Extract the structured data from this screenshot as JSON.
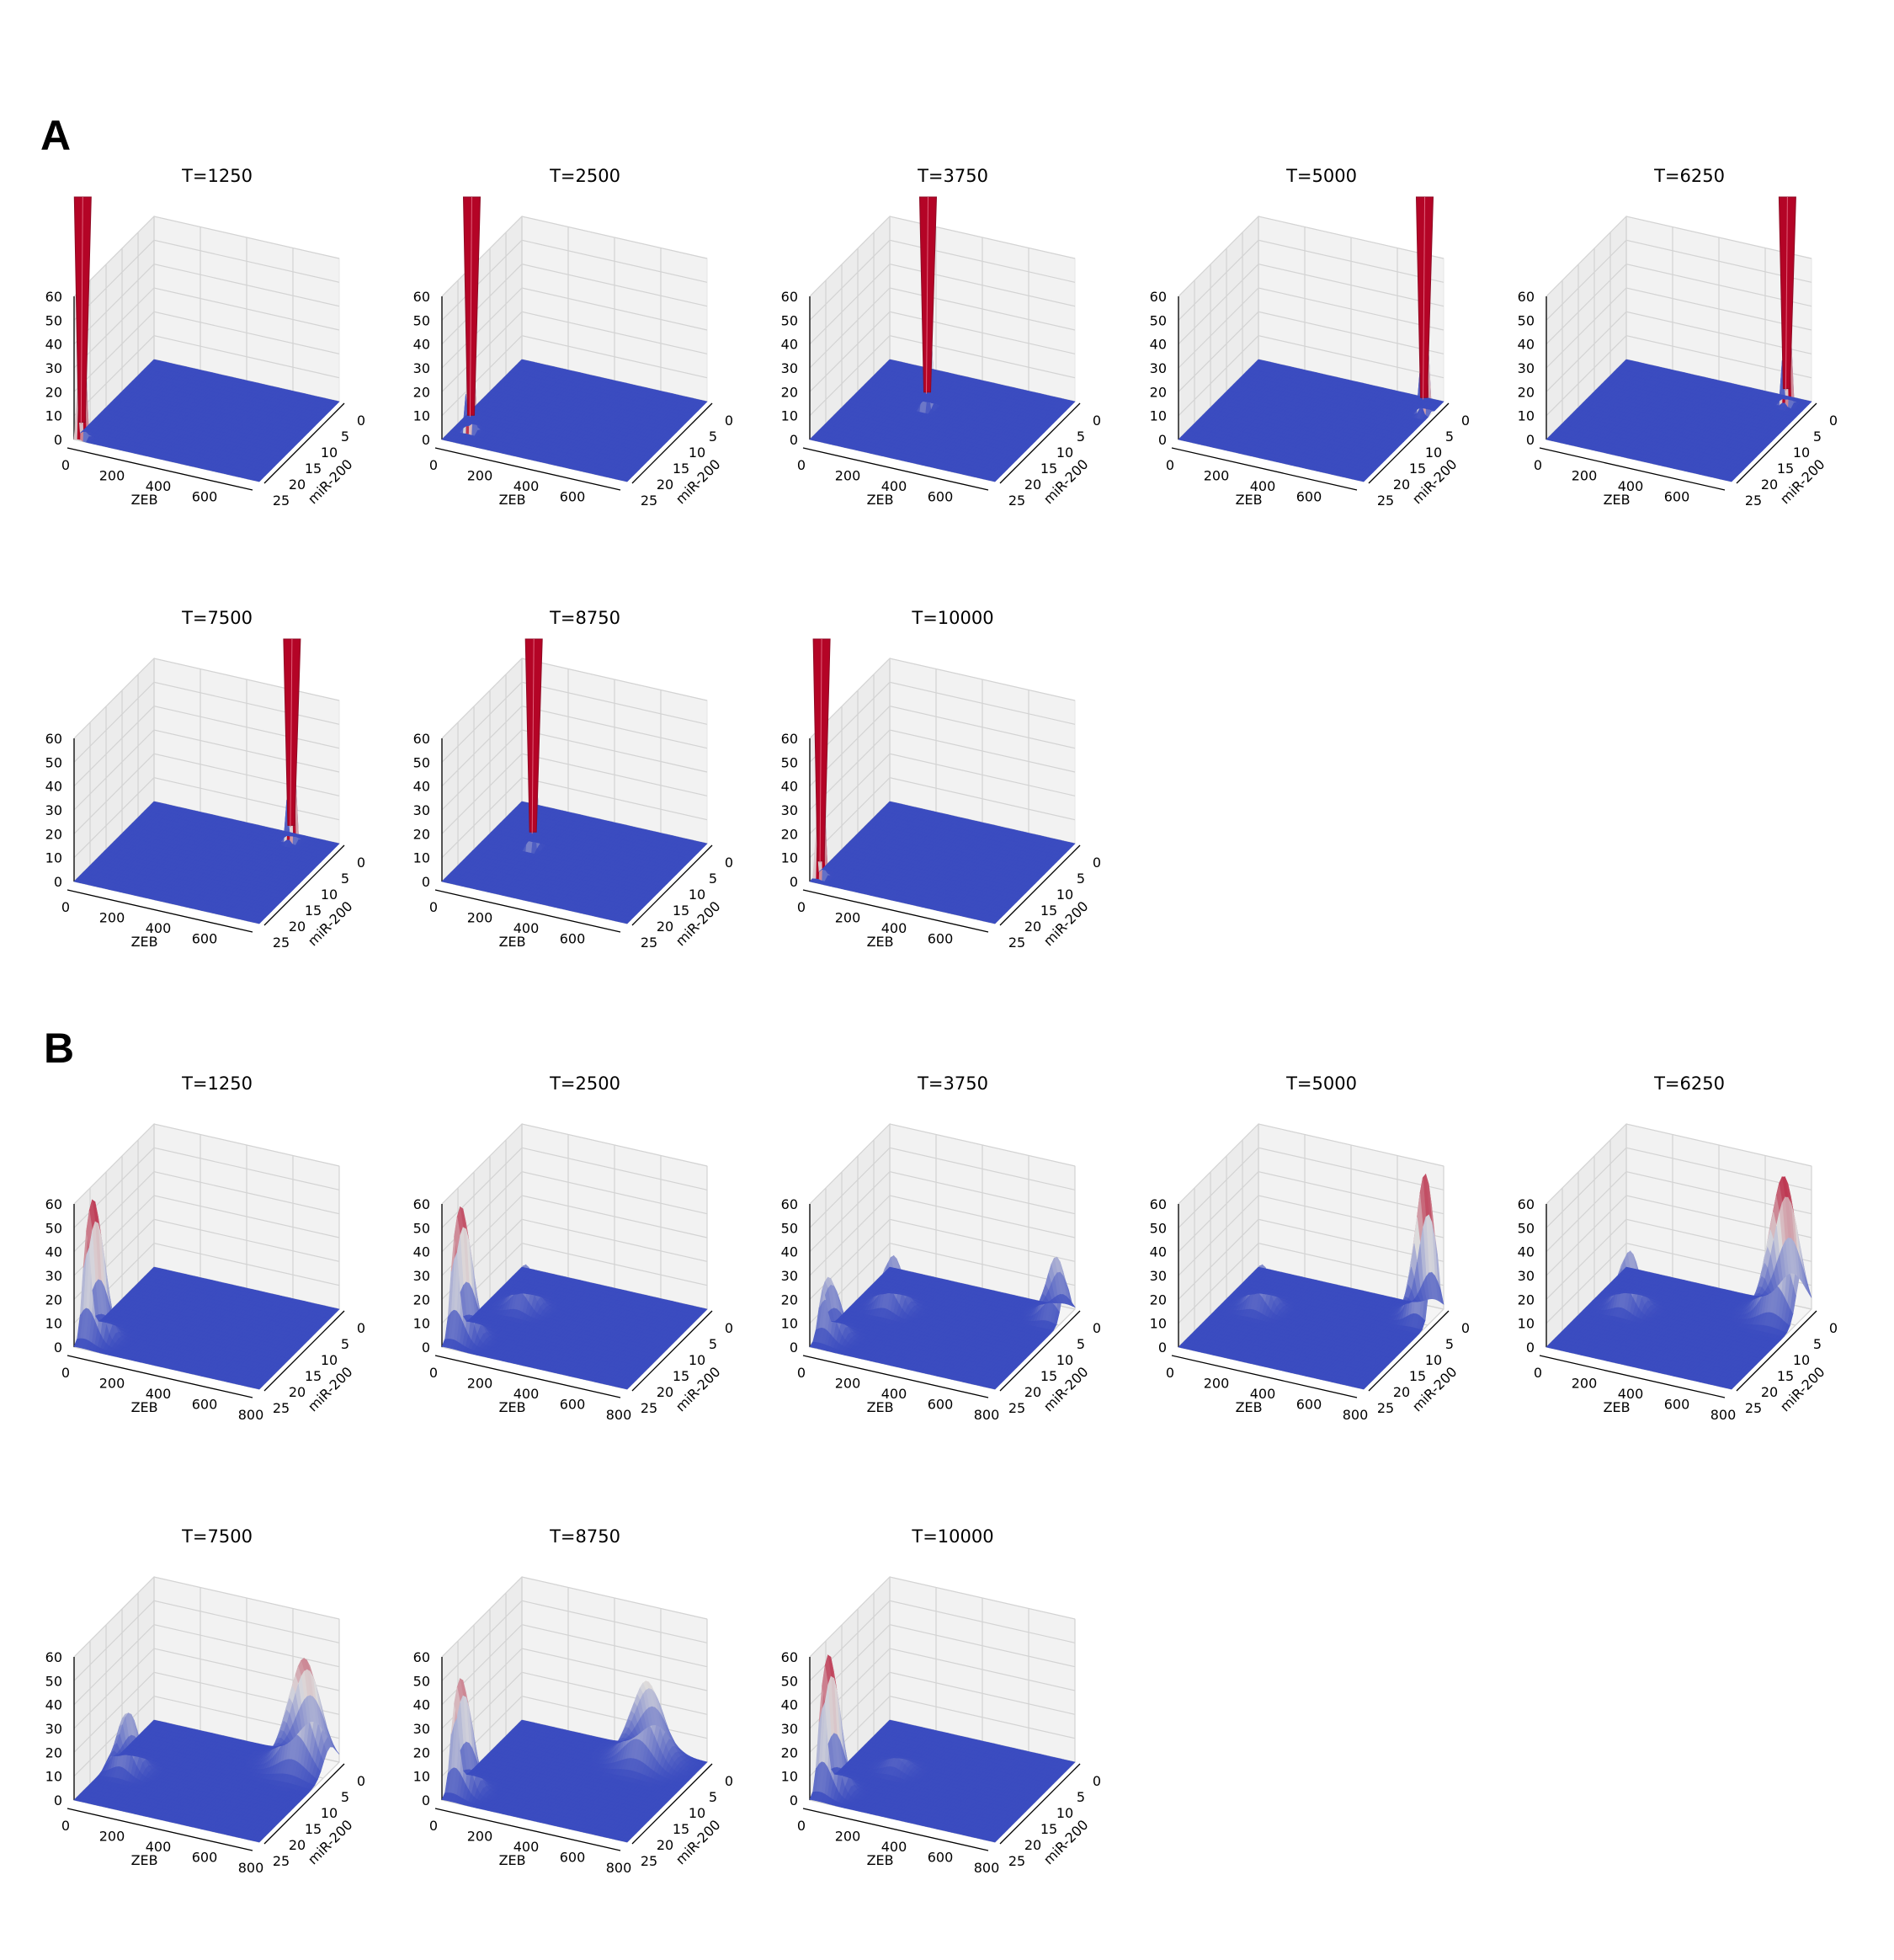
{
  "panel_labels": [
    "A",
    "B"
  ],
  "colors": {
    "surface_low": "#3b4cc0",
    "surface_mid": "#dddcdc",
    "surface_high": "#b40426",
    "pane": "#f2f2f2",
    "grid": "#d3d3d3"
  },
  "chart_data": [
    {
      "panel": "A",
      "type": "surface3d",
      "title": "T=1250",
      "xlabel": "ZEB",
      "ylabel": "miR-200",
      "xticks": [
        "0",
        "200",
        "400",
        "600"
      ],
      "yticks": [
        "0",
        "5",
        "10",
        "15",
        "20",
        "25"
      ],
      "zticks": [
        "0",
        "10",
        "20",
        "30",
        "40",
        "50",
        "60"
      ],
      "xlim": [
        0,
        800
      ],
      "ylim": [
        0,
        25
      ],
      "zlim": [
        0,
        60
      ],
      "peaks": [
        {
          "zeb": 20,
          "mir200": 24,
          "height": 160,
          "width": 0.012
        }
      ]
    },
    {
      "panel": "A",
      "type": "surface3d",
      "title": "T=2500",
      "xlabel": "ZEB",
      "ylabel": "miR-200",
      "xticks": [
        "0",
        "200",
        "400",
        "600"
      ],
      "yticks": [
        "0",
        "5",
        "10",
        "15",
        "20",
        "25"
      ],
      "zticks": [
        "0",
        "10",
        "20",
        "30",
        "40",
        "50",
        "60"
      ],
      "xlim": [
        0,
        800
      ],
      "ylim": [
        0,
        25
      ],
      "zlim": [
        0,
        60
      ],
      "peaks": [
        {
          "zeb": 70,
          "mir200": 21,
          "height": 150,
          "width": 0.012
        }
      ]
    },
    {
      "panel": "A",
      "type": "surface3d",
      "title": "T=3750",
      "xlabel": "ZEB",
      "ylabel": "miR-200",
      "xticks": [
        "0",
        "200",
        "400",
        "600"
      ],
      "yticks": [
        "0",
        "5",
        "10",
        "15",
        "20",
        "25"
      ],
      "zticks": [
        "0",
        "10",
        "20",
        "30",
        "40",
        "50",
        "60"
      ],
      "xlim": [
        0,
        800
      ],
      "ylim": [
        0,
        25
      ],
      "zlim": [
        0,
        60
      ],
      "peaks": [
        {
          "zeb": 300,
          "mir200": 10,
          "height": 160,
          "width": 0.012
        }
      ]
    },
    {
      "panel": "A",
      "type": "surface3d",
      "title": "T=5000",
      "xlabel": "ZEB",
      "ylabel": "miR-200",
      "xticks": [
        "0",
        "200",
        "400",
        "600"
      ],
      "yticks": [
        "0",
        "5",
        "10",
        "15",
        "20",
        "25"
      ],
      "zticks": [
        "0",
        "10",
        "20",
        "30",
        "40",
        "50",
        "60"
      ],
      "xlim": [
        0,
        800
      ],
      "ylim": [
        0,
        25
      ],
      "zlim": [
        0,
        60
      ],
      "peaks": [
        {
          "zeb": 770,
          "mir200": 4,
          "height": 160,
          "width": 0.012
        }
      ]
    },
    {
      "panel": "A",
      "type": "surface3d",
      "title": "T=6250",
      "xlabel": "ZEB",
      "ylabel": "miR-200",
      "xticks": [
        "0",
        "200",
        "400",
        "600"
      ],
      "yticks": [
        "0",
        "5",
        "10",
        "15",
        "20",
        "25"
      ],
      "zticks": [
        "0",
        "10",
        "20",
        "30",
        "40",
        "50",
        "60"
      ],
      "xlim": [
        0,
        800
      ],
      "ylim": [
        0,
        25
      ],
      "zlim": [
        0,
        60
      ],
      "peaks": [
        {
          "zeb": 720,
          "mir200": 2,
          "height": 160,
          "width": 0.012
        }
      ]
    },
    {
      "panel": "A",
      "type": "surface3d",
      "title": "T=7500",
      "xlabel": "ZEB",
      "ylabel": "miR-200",
      "xticks": [
        "0",
        "200",
        "400",
        "600"
      ],
      "yticks": [
        "0",
        "5",
        "10",
        "15",
        "20",
        "25"
      ],
      "zticks": [
        "0",
        "10",
        "20",
        "30",
        "40",
        "50",
        "60"
      ],
      "xlim": [
        0,
        800
      ],
      "ylim": [
        0,
        25
      ],
      "zlim": [
        0,
        60
      ],
      "peaks": [
        {
          "zeb": 620,
          "mir200": 2,
          "height": 150,
          "width": 0.012
        }
      ]
    },
    {
      "panel": "A",
      "type": "surface3d",
      "title": "T=8750",
      "xlabel": "ZEB",
      "ylabel": "miR-200",
      "xticks": [
        "0",
        "200",
        "400",
        "600"
      ],
      "yticks": [
        "0",
        "5",
        "10",
        "15",
        "20",
        "25"
      ],
      "zticks": [
        "0",
        "10",
        "20",
        "30",
        "40",
        "50",
        "60"
      ],
      "xlim": [
        0,
        800
      ],
      "ylim": [
        0,
        25
      ],
      "zlim": [
        0,
        60
      ],
      "peaks": [
        {
          "zeb": 200,
          "mir200": 11,
          "height": 150,
          "width": 0.012
        }
      ]
    },
    {
      "panel": "A",
      "type": "surface3d",
      "title": "T=10000",
      "xlabel": "ZEB",
      "ylabel": "miR-200",
      "xticks": [
        "0",
        "200",
        "400",
        "600"
      ],
      "yticks": [
        "0",
        "5",
        "10",
        "15",
        "20",
        "25"
      ],
      "zticks": [
        "0",
        "10",
        "20",
        "30",
        "40",
        "50",
        "60"
      ],
      "xlim": [
        0,
        800
      ],
      "ylim": [
        0,
        25
      ],
      "zlim": [
        0,
        60
      ],
      "peaks": [
        {
          "zeb": 20,
          "mir200": 23,
          "height": 160,
          "width": 0.012
        }
      ]
    },
    {
      "panel": "B",
      "type": "surface3d",
      "title": "T=1250",
      "xlabel": "ZEB",
      "ylabel": "miR-200",
      "xticks": [
        "0",
        "200",
        "400",
        "600",
        "800"
      ],
      "yticks": [
        "0",
        "5",
        "10",
        "15",
        "20",
        "25"
      ],
      "zticks": [
        "0",
        "10",
        "20",
        "30",
        "40",
        "50",
        "60"
      ],
      "xlim": [
        0,
        800
      ],
      "ylim": [
        0,
        25
      ],
      "zlim": [
        0,
        60
      ],
      "peaks": [
        {
          "zeb": 30,
          "mir200": 21,
          "height": 58,
          "width": 0.05
        }
      ]
    },
    {
      "panel": "B",
      "type": "surface3d",
      "title": "T=2500",
      "xlabel": "ZEB",
      "ylabel": "miR-200",
      "xticks": [
        "0",
        "200",
        "400",
        "600",
        "800"
      ],
      "yticks": [
        "0",
        "5",
        "10",
        "15",
        "20",
        "25"
      ],
      "zticks": [
        "0",
        "10",
        "20",
        "30",
        "40",
        "50",
        "60"
      ],
      "xlim": [
        0,
        800
      ],
      "ylim": [
        0,
        25
      ],
      "zlim": [
        0,
        60
      ],
      "peaks": [
        {
          "zeb": 30,
          "mir200": 21,
          "height": 55,
          "width": 0.05
        },
        {
          "zeb": 150,
          "mir200": 10,
          "height": 18,
          "width": 0.05
        }
      ]
    },
    {
      "panel": "B",
      "type": "surface3d",
      "title": "T=3750",
      "xlabel": "ZEB",
      "ylabel": "miR-200",
      "xticks": [
        "0",
        "200",
        "400",
        "600",
        "800"
      ],
      "yticks": [
        "0",
        "5",
        "10",
        "15",
        "20",
        "25"
      ],
      "zticks": [
        "0",
        "10",
        "20",
        "30",
        "40",
        "50",
        "60"
      ],
      "xlim": [
        0,
        800
      ],
      "ylim": [
        0,
        25
      ],
      "zlim": [
        0,
        60
      ],
      "peaks": [
        {
          "zeb": 30,
          "mir200": 21,
          "height": 25,
          "width": 0.05
        },
        {
          "zeb": 150,
          "mir200": 10,
          "height": 22,
          "width": 0.05
        },
        {
          "zeb": 760,
          "mir200": 3,
          "height": 25,
          "width": 0.05
        }
      ]
    },
    {
      "panel": "B",
      "type": "surface3d",
      "title": "T=5000",
      "xlabel": "ZEB",
      "ylabel": "miR-200",
      "xticks": [
        "0",
        "200",
        "400",
        "600",
        "800"
      ],
      "yticks": [
        "0",
        "5",
        "10",
        "15",
        "20",
        "25"
      ],
      "zticks": [
        "0",
        "10",
        "20",
        "30",
        "40",
        "50",
        "60"
      ],
      "xlim": [
        0,
        800
      ],
      "ylim": [
        0,
        25
      ],
      "zlim": [
        0,
        60
      ],
      "peaks": [
        {
          "zeb": 150,
          "mir200": 10,
          "height": 18,
          "width": 0.05
        },
        {
          "zeb": 760,
          "mir200": 3,
          "height": 60,
          "width": 0.05
        }
      ]
    },
    {
      "panel": "B",
      "type": "surface3d",
      "title": "T=6250",
      "xlabel": "ZEB",
      "ylabel": "miR-200",
      "xticks": [
        "0",
        "200",
        "400",
        "600",
        "800"
      ],
      "yticks": [
        "0",
        "5",
        "10",
        "15",
        "20",
        "25"
      ],
      "zticks": [
        "0",
        "10",
        "20",
        "30",
        "40",
        "50",
        "60"
      ],
      "xlim": [
        0,
        800
      ],
      "ylim": [
        0,
        25
      ],
      "zlim": [
        0,
        60
      ],
      "peaks": [
        {
          "zeb": 150,
          "mir200": 10,
          "height": 24,
          "width": 0.05
        },
        {
          "zeb": 720,
          "mir200": 3,
          "height": 58,
          "width": 0.07
        }
      ]
    },
    {
      "panel": "B",
      "type": "surface3d",
      "title": "T=7500",
      "xlabel": "ZEB",
      "ylabel": "miR-200",
      "xticks": [
        "0",
        "200",
        "400",
        "600",
        "800"
      ],
      "yticks": [
        "0",
        "5",
        "10",
        "15",
        "20",
        "25"
      ],
      "zticks": [
        "0",
        "10",
        "20",
        "30",
        "40",
        "50",
        "60"
      ],
      "xlim": [
        0,
        800
      ],
      "ylim": [
        0,
        25
      ],
      "zlim": [
        0,
        60
      ],
      "peaks": [
        {
          "zeb": 80,
          "mir200": 14,
          "height": 25,
          "width": 0.05
        },
        {
          "zeb": 690,
          "mir200": 3,
          "height": 45,
          "width": 0.08
        }
      ]
    },
    {
      "panel": "B",
      "type": "surface3d",
      "title": "T=8750",
      "xlabel": "ZEB",
      "ylabel": "miR-200",
      "xticks": [
        "0",
        "200",
        "400",
        "600",
        "800"
      ],
      "yticks": [
        "0",
        "5",
        "10",
        "15",
        "20",
        "25"
      ],
      "zticks": [
        "0",
        "10",
        "20",
        "30",
        "40",
        "50",
        "60"
      ],
      "xlim": [
        0,
        800
      ],
      "ylim": [
        0,
        25
      ],
      "zlim": [
        0,
        60
      ],
      "peaks": [
        {
          "zeb": 30,
          "mir200": 21,
          "height": 47,
          "width": 0.05
        },
        {
          "zeb": 580,
          "mir200": 3,
          "height": 33,
          "width": 0.08
        }
      ]
    },
    {
      "panel": "B",
      "type": "surface3d",
      "title": "T=10000",
      "xlabel": "ZEB",
      "ylabel": "miR-200",
      "xticks": [
        "0",
        "200",
        "400",
        "600",
        "800"
      ],
      "yticks": [
        "0",
        "5",
        "10",
        "15",
        "20",
        "25"
      ],
      "zticks": [
        "0",
        "10",
        "20",
        "30",
        "40",
        "50",
        "60"
      ],
      "xlim": [
        0,
        800
      ],
      "ylim": [
        0,
        25
      ],
      "zlim": [
        0,
        60
      ],
      "peaks": [
        {
          "zeb": 30,
          "mir200": 21,
          "height": 57,
          "width": 0.05
        },
        {
          "zeb": 200,
          "mir200": 12,
          "height": 6,
          "width": 0.05
        }
      ]
    }
  ]
}
